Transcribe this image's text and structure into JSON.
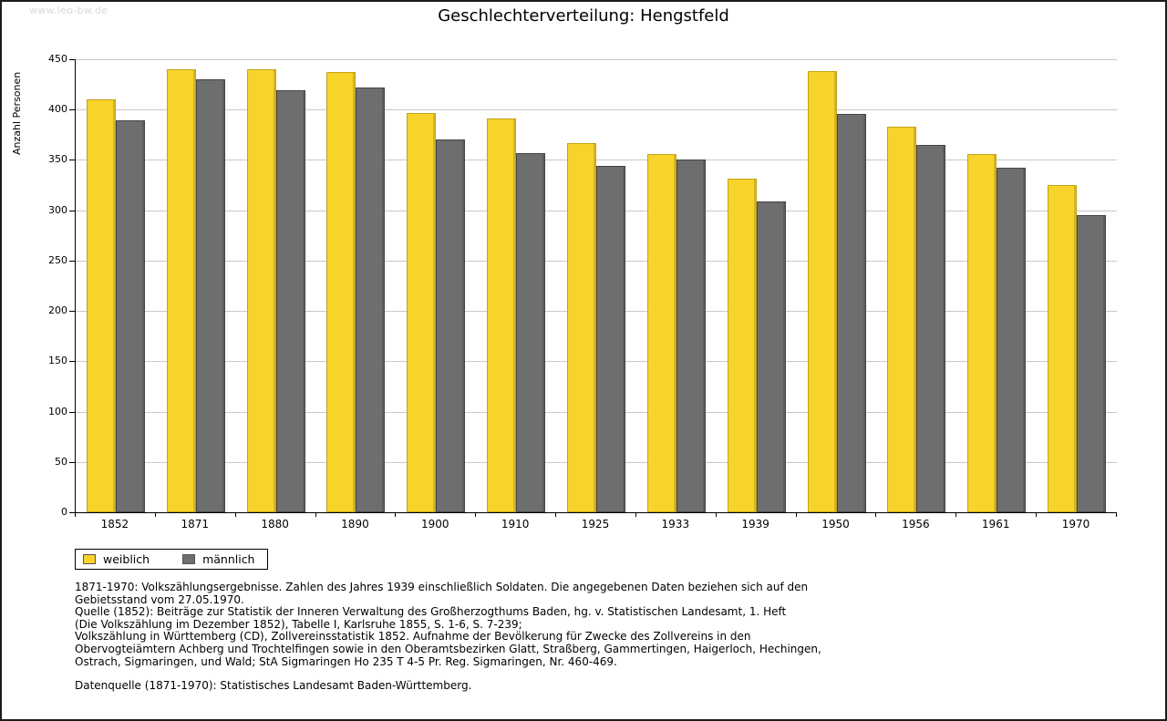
{
  "watermark": "www.leo-bw.de",
  "chart_data": {
    "type": "bar",
    "title": "Geschlechterverteilung: Hengstfeld",
    "xlabel": "",
    "ylabel": "Anzahl Personen",
    "ylim": [
      0,
      450
    ],
    "ytick_step": 50,
    "grid": true,
    "legend_position": "bottom-left",
    "categories": [
      "1852",
      "1871",
      "1880",
      "1890",
      "1900",
      "1910",
      "1925",
      "1933",
      "1939",
      "1950",
      "1956",
      "1961",
      "1970"
    ],
    "series": [
      {
        "name": "weiblich",
        "color": "#F8D32A",
        "border_color": "#C2A318",
        "values": [
          410,
          440,
          440,
          437,
          397,
          391,
          367,
          356,
          331,
          438,
          383,
          356,
          325
        ]
      },
      {
        "name": "männlich",
        "color": "#6D6E70",
        "border_color": "#454547",
        "values": [
          389,
          430,
          419,
          422,
          370,
          357,
          344,
          350,
          309,
          396,
          365,
          342,
          295
        ]
      }
    ]
  },
  "footnotes": {
    "lines": [
      "1871-1970: Volkszählungsergebnisse. Zahlen des Jahres 1939 einschließlich Soldaten. Die angegebenen Daten beziehen sich auf den",
      "Gebietsstand vom 27.05.1970.",
      "Quelle (1852): Beiträge zur Statistik der Inneren Verwaltung des Großherzogthums Baden, hg. v. Statistischen Landesamt, 1. Heft",
      "(Die Volkszählung im Dezember 1852), Tabelle I, Karlsruhe 1855, S. 1-6, S. 7-239;",
      "Volkszählung in Württemberg (CD), Zollvereinsstatistik 1852. Aufnahme der Bevölkerung für Zwecke des Zollvereins in den",
      "Obervogteiämtern Achberg und Trochtelfingen sowie in den Oberamtsbezirken Glatt, Straßberg, Gammertingen, Haigerloch, Hechingen,",
      "Ostrach, Sigmaringen, und Wald; StA Sigmaringen Ho 235 T 4-5 Pr. Reg. Sigmaringen, Nr. 460-469."
    ],
    "datasource": "Datenquelle (1871-1970): Statistisches Landesamt Baden-Württemberg."
  }
}
